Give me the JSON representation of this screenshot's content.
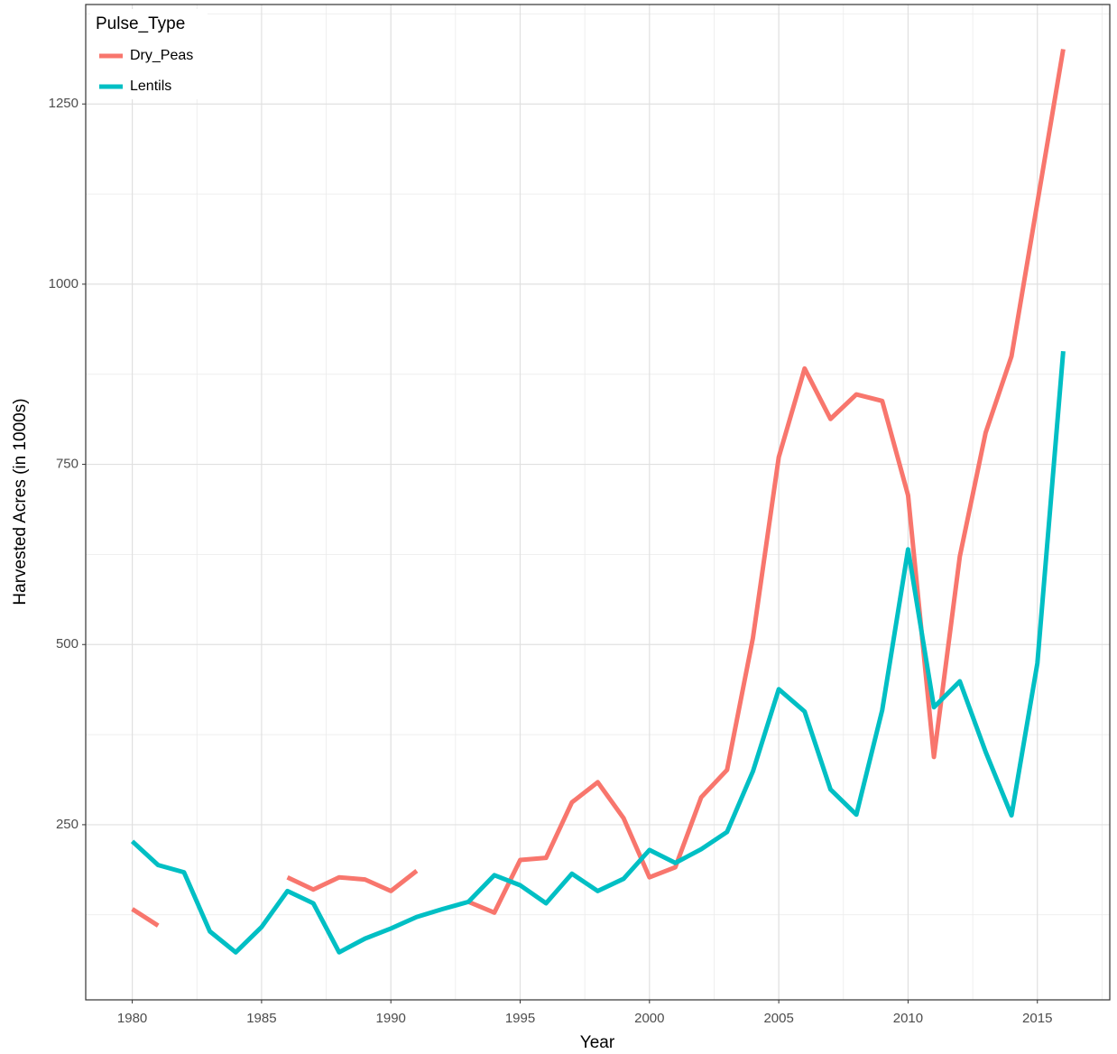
{
  "chart_data": {
    "type": "line",
    "x_label": "Year",
    "y_label": "Harvested Acres (in 1000s)",
    "legend_title": "Pulse_Type",
    "legend_position": "top-left",
    "grid": true,
    "x": [
      1980,
      1981,
      1982,
      1983,
      1984,
      1985,
      1986,
      1987,
      1988,
      1989,
      1990,
      1991,
      1992,
      1993,
      1994,
      1995,
      1996,
      1997,
      1998,
      1999,
      2000,
      2001,
      2002,
      2003,
      2004,
      2005,
      2006,
      2007,
      2008,
      2009,
      2010,
      2011,
      2012,
      2013,
      2014,
      2015,
      2016
    ],
    "series": [
      {
        "name": "Dry_Peas",
        "color": "#f8766d",
        "values": [
          133,
          110,
          null,
          null,
          null,
          null,
          177,
          160,
          177,
          174,
          158,
          186,
          null,
          143,
          128,
          201,
          204,
          281,
          309,
          259,
          177,
          191,
          288,
          326,
          509,
          760,
          883,
          813,
          847,
          838,
          707,
          344,
          622,
          794,
          900,
          1113,
          1326
        ]
      },
      {
        "name": "Lentils",
        "color": "#00bfc4",
        "values": [
          227,
          194,
          184,
          102,
          73,
          108,
          158,
          141,
          73,
          92,
          106,
          122,
          133,
          143,
          180,
          166,
          141,
          182,
          158,
          175,
          215,
          197,
          216,
          240,
          324,
          438,
          407,
          299,
          264,
          409,
          632,
          413,
          449,
          351,
          263,
          474,
          907
        ]
      }
    ],
    "xlim": [
      1978.2,
      2017.8
    ],
    "xticks": [
      1980,
      1985,
      1990,
      1995,
      2000,
      2005,
      2010,
      2015
    ],
    "ylim": [
      7,
      1388
    ],
    "yticks": [
      250,
      500,
      750,
      1000,
      1250
    ]
  }
}
